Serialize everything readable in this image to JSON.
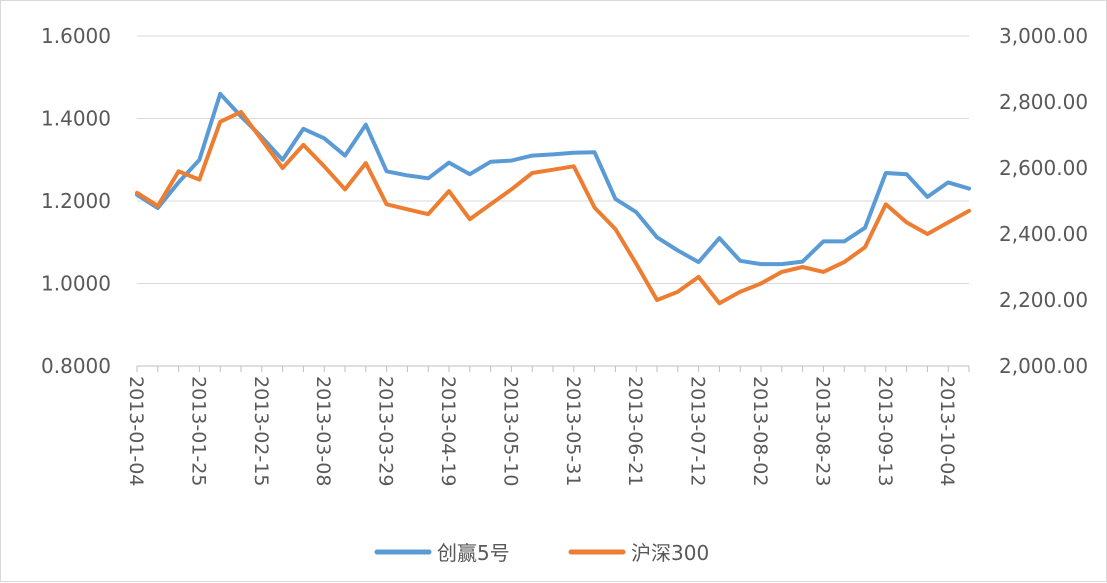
{
  "chart_data": {
    "type": "line",
    "title": "",
    "x": [
      "2013-01-04",
      "2013-01-11",
      "2013-01-18",
      "2013-01-25",
      "2013-02-01",
      "2013-02-08",
      "2013-02-15",
      "2013-02-22",
      "2013-03-01",
      "2013-03-08",
      "2013-03-15",
      "2013-03-22",
      "2013-03-29",
      "2013-04-05",
      "2013-04-12",
      "2013-04-19",
      "2013-04-26",
      "2013-05-03",
      "2013-05-10",
      "2013-05-17",
      "2013-05-24",
      "2013-05-31",
      "2013-06-07",
      "2013-06-14",
      "2013-06-21",
      "2013-06-28",
      "2013-07-05",
      "2013-07-12",
      "2013-07-19",
      "2013-07-26",
      "2013-08-02",
      "2013-08-09",
      "2013-08-16",
      "2013-08-23",
      "2013-08-30",
      "2013-09-06",
      "2013-09-13",
      "2013-09-20",
      "2013-09-27",
      "2013-10-04",
      "2013-10-11"
    ],
    "x_tick_labels": [
      "2013-01-04",
      "2013-01-25",
      "2013-02-15",
      "2013-03-08",
      "2013-03-29",
      "2013-04-19",
      "2013-05-10",
      "2013-05-31",
      "2013-06-21",
      "2013-07-12",
      "2013-08-02",
      "2013-08-23",
      "2013-09-13",
      "2013-10-04"
    ],
    "y_left": {
      "ticks": [
        "1.6000",
        "1.4000",
        "1.2000",
        "1.0000",
        "0.8000"
      ],
      "range": [
        0.8,
        1.6
      ]
    },
    "y_right": {
      "ticks": [
        "3,000.00",
        "2,800.00",
        "2,600.00",
        "2,400.00",
        "2,200.00",
        "2,000.00"
      ],
      "range": [
        2000,
        3000
      ]
    },
    "grid": true,
    "legend_position": "bottom",
    "series": [
      {
        "name": "创赢5号",
        "axis": "left",
        "color": "#5b9bd5",
        "values": [
          1.215,
          1.183,
          1.245,
          1.3,
          1.46,
          1.405,
          1.355,
          1.3,
          1.375,
          1.352,
          1.31,
          1.385,
          1.272,
          1.262,
          1.255,
          1.293,
          1.265,
          1.295,
          1.298,
          1.31,
          1.313,
          1.317,
          1.318,
          1.205,
          1.173,
          1.112,
          1.08,
          1.052,
          1.11,
          1.055,
          1.047,
          1.047,
          1.053,
          1.102,
          1.102,
          1.135,
          1.268,
          1.265,
          1.21,
          1.245,
          1.23
        ]
      },
      {
        "name": "沪深300",
        "axis": "right",
        "color": "#ed7d31",
        "values": [
          2525,
          2485,
          2590,
          2565,
          2740,
          2770,
          2685,
          2600,
          2670,
          2605,
          2535,
          2615,
          2490,
          2475,
          2460,
          2530,
          2445,
          2490,
          2535,
          2585,
          2595,
          2605,
          2480,
          2415,
          2310,
          2200,
          2225,
          2270,
          2190,
          2225,
          2250,
          2285,
          2300,
          2285,
          2315,
          2360,
          2490,
          2435,
          2400,
          2435,
          2470
        ]
      }
    ]
  }
}
